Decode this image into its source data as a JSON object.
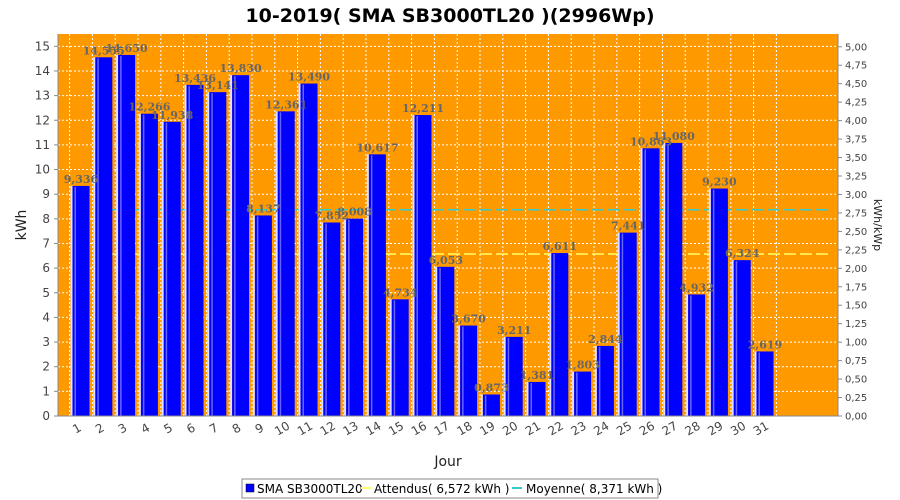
{
  "chart_data": {
    "type": "bar",
    "title": "10-2019( SMA SB3000TL20 )(2996Wp)",
    "xlabel": "Jour",
    "ylabel": "kWh",
    "ylabel_right": "kWh/kWp",
    "ylim": [
      0,
      15.5
    ],
    "ylim_right": [
      0,
      5.173
    ],
    "yticks": [
      "0",
      "1",
      "2",
      "3",
      "4",
      "5",
      "6",
      "7",
      "8",
      "9",
      "10",
      "11",
      "12",
      "13",
      "14",
      "15"
    ],
    "yticks_right": [
      "0,00",
      "0,25",
      "0,50",
      "0,75",
      "1,00",
      "1,25",
      "1,50",
      "1,75",
      "2,00",
      "2,25",
      "2,50",
      "2,75",
      "3,00",
      "3,25",
      "3,50",
      "3,75",
      "4,00",
      "4,25",
      "4,50",
      "4,75",
      "5,00"
    ],
    "grid": true,
    "legend_position": "bottom",
    "categories": [
      "1",
      "2",
      "3",
      "4",
      "5",
      "6",
      "7",
      "8",
      "9",
      "10",
      "11",
      "12",
      "13",
      "14",
      "15",
      "16",
      "17",
      "18",
      "19",
      "20",
      "21",
      "22",
      "23",
      "24",
      "25",
      "26",
      "27",
      "28",
      "29",
      "30",
      "31"
    ],
    "series": [
      {
        "name": "SMA SB3000TL20",
        "color": "#0000ff",
        "values": [
          9.336,
          14.555,
          14.65,
          12.266,
          11.938,
          13.436,
          13.141,
          13.83,
          8.137,
          12.361,
          13.49,
          7.852,
          8.008,
          10.617,
          4.734,
          12.211,
          6.053,
          3.67,
          0.873,
          3.211,
          1.381,
          6.611,
          1.803,
          2.844,
          7.441,
          10.863,
          11.08,
          4.932,
          9.23,
          6.324,
          2.619
        ],
        "labels": [
          "9,336",
          "14,555",
          "14,650",
          "12,266",
          "11,938",
          "13,436",
          "13,141",
          "13,830",
          "8,137",
          "12,361",
          "13,490",
          "7,852",
          "8,008",
          "10,617",
          "4,734",
          "12,211",
          "6,053",
          "3,670",
          "0,873",
          "3,211",
          "1,381",
          "6,611",
          "1,803",
          "2,844",
          "7,441",
          "10,863",
          "11,080",
          "4,932",
          "9,230",
          "6,324",
          "2,619"
        ]
      }
    ],
    "reference_lines": [
      {
        "name": "Attendus",
        "value": 6.572,
        "color": "#ffff66"
      },
      {
        "name": "Moyenne",
        "value": 8.371,
        "color": "#33cccc"
      }
    ],
    "legend": [
      {
        "label": "SMA SB3000TL20",
        "color": "#0000ff",
        "kind": "box"
      },
      {
        "label": "Attendus( 6,572 kWh )",
        "color": "#ffff66",
        "kind": "line"
      },
      {
        "label": "Moyenne( 8,371 kWh )",
        "color": "#33cccc",
        "kind": "line"
      }
    ],
    "colors": {
      "plot_background": "#ff9900",
      "bar": "#0000ff",
      "grid": "#ffffff"
    }
  }
}
